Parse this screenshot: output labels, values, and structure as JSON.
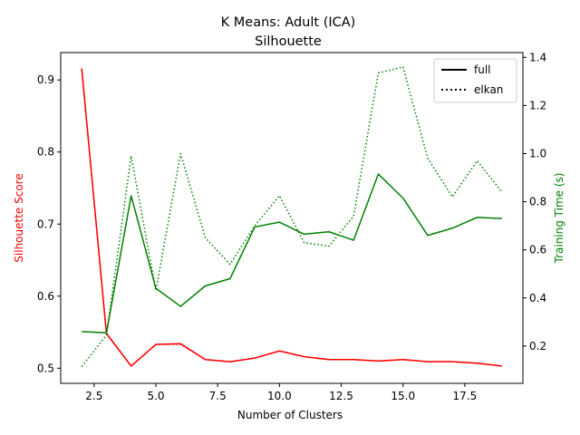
{
  "chart_data": {
    "type": "line",
    "title": "K Means: Adult (ICA)",
    "subtitle": "Silhouette",
    "xlabel": "Number of Clusters",
    "ylabel_left": "Silhouette Score",
    "ylabel_right": "Training Time (s)",
    "x": [
      2,
      3,
      4,
      5,
      6,
      7,
      8,
      9,
      10,
      11,
      12,
      13,
      14,
      15,
      16,
      17,
      18,
      19
    ],
    "xlim": [
      1.15,
      19.85
    ],
    "ylim_left": [
      0.479,
      0.938
    ],
    "ylim_right": [
      0.045,
      1.42
    ],
    "xticks": [
      2.5,
      5.0,
      7.5,
      10.0,
      12.5,
      15.0,
      17.5
    ],
    "xtick_labels": [
      "2.5",
      "5.0",
      "7.5",
      "10.0",
      "12.5",
      "15.0",
      "17.5"
    ],
    "yticks_left": [
      0.5,
      0.6,
      0.7,
      0.8,
      0.9
    ],
    "ytick_labels_left": [
      "0.5",
      "0.6",
      "0.7",
      "0.8",
      "0.9"
    ],
    "yticks_right": [
      0.2,
      0.4,
      0.6,
      0.8,
      1.0,
      1.2,
      1.4
    ],
    "ytick_labels_right": [
      "0.2",
      "0.4",
      "0.6",
      "0.8",
      "1.0",
      "1.2",
      "1.4"
    ],
    "left_color": "#ff0000",
    "right_color": "#008000",
    "grid": false,
    "legend_placement": "top-right",
    "legend": [
      {
        "name": "full",
        "style": "solid"
      },
      {
        "name": "elkan",
        "style": "dotted"
      }
    ],
    "series": [
      {
        "axis": "left",
        "color": "#ff0000",
        "style": "solid",
        "values": [
          0.916,
          0.548,
          0.503,
          0.533,
          0.534,
          0.512,
          0.509,
          0.514,
          0.524,
          0.516,
          0.512,
          0.512,
          0.51,
          0.512,
          0.509,
          0.509,
          0.507,
          0.503
        ]
      },
      {
        "axis": "left",
        "color": "#ff0000",
        "style": "dotted",
        "values": [
          0.914,
          0.549,
          0.503,
          0.533,
          0.533,
          0.512,
          0.509,
          0.514,
          0.524,
          0.516,
          0.512,
          0.512,
          0.51,
          0.512,
          0.509,
          0.509,
          0.507,
          0.503
        ]
      },
      {
        "axis": "right",
        "color": "#008000",
        "style": "solid",
        "values": [
          0.26,
          0.255,
          0.825,
          0.44,
          0.365,
          0.45,
          0.48,
          0.695,
          0.715,
          0.665,
          0.675,
          0.64,
          0.915,
          0.815,
          0.66,
          0.69,
          0.735,
          0.73
        ]
      },
      {
        "axis": "right",
        "color": "#008000",
        "style": "dotted",
        "values": [
          0.115,
          0.245,
          0.99,
          0.43,
          1.0,
          0.65,
          0.54,
          0.7,
          0.825,
          0.63,
          0.615,
          0.74,
          1.335,
          1.36,
          0.98,
          0.82,
          0.97,
          0.84
        ]
      }
    ]
  }
}
